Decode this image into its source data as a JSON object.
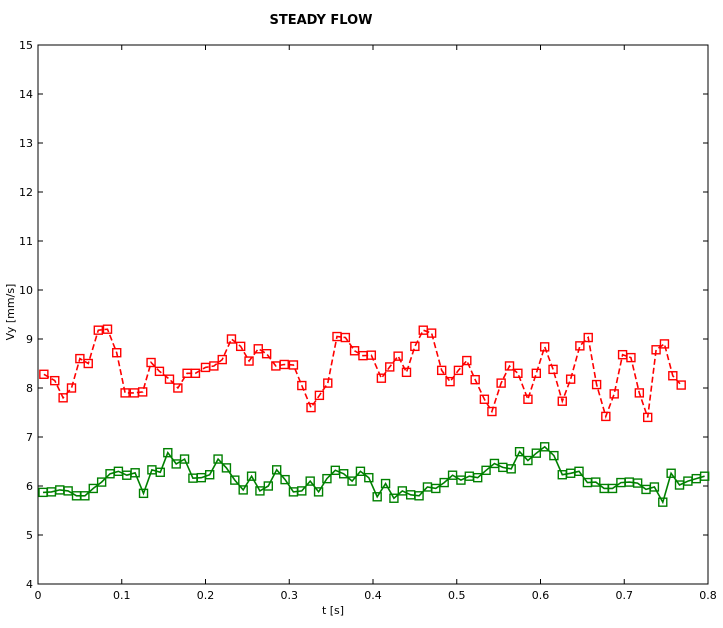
{
  "chart_data": {
    "type": "line",
    "title": "STEADY FLOW",
    "xlabel": "t [s]",
    "ylabel": "Vy [mm/s]",
    "xlim": [
      0,
      0.8
    ],
    "ylim": [
      4,
      15
    ],
    "xticks": [
      "0",
      "0.1",
      "0.2",
      "0.3",
      "0.4",
      "0.5",
      "0.6",
      "0.7",
      "0.8"
    ],
    "yticks": [
      "4",
      "5",
      "6",
      "7",
      "8",
      "9",
      "10",
      "11",
      "12",
      "13",
      "14",
      "15"
    ],
    "grid": false,
    "series": [
      {
        "color": "#ff0000",
        "line_style": "dashed",
        "marker": "square",
        "points": [
          [
            0.007,
            8.28
          ],
          [
            0.02,
            8.15
          ],
          [
            0.03,
            7.8
          ],
          [
            0.04,
            8.0
          ],
          [
            0.05,
            8.6
          ],
          [
            0.06,
            8.5
          ],
          [
            0.072,
            9.18
          ],
          [
            0.083,
            9.2
          ],
          [
            0.094,
            8.72
          ],
          [
            0.104,
            7.9
          ],
          [
            0.115,
            7.9
          ],
          [
            0.125,
            7.92
          ],
          [
            0.135,
            8.52
          ],
          [
            0.145,
            8.34
          ],
          [
            0.157,
            8.18
          ],
          [
            0.167,
            8.0
          ],
          [
            0.178,
            8.3
          ],
          [
            0.188,
            8.3
          ],
          [
            0.2,
            8.42
          ],
          [
            0.21,
            8.45
          ],
          [
            0.22,
            8.58
          ],
          [
            0.231,
            9.0
          ],
          [
            0.242,
            8.85
          ],
          [
            0.252,
            8.55
          ],
          [
            0.263,
            8.8
          ],
          [
            0.273,
            8.7
          ],
          [
            0.284,
            8.45
          ],
          [
            0.294,
            8.48
          ],
          [
            0.305,
            8.47
          ],
          [
            0.315,
            8.05
          ],
          [
            0.326,
            7.6
          ],
          [
            0.336,
            7.85
          ],
          [
            0.346,
            8.1
          ],
          [
            0.357,
            9.05
          ],
          [
            0.367,
            9.03
          ],
          [
            0.378,
            8.76
          ],
          [
            0.388,
            8.66
          ],
          [
            0.398,
            8.67
          ],
          [
            0.41,
            8.2
          ],
          [
            0.42,
            8.43
          ],
          [
            0.43,
            8.65
          ],
          [
            0.44,
            8.32
          ],
          [
            0.45,
            8.85
          ],
          [
            0.46,
            9.18
          ],
          [
            0.47,
            9.12
          ],
          [
            0.482,
            8.36
          ],
          [
            0.492,
            8.13
          ],
          [
            0.502,
            8.36
          ],
          [
            0.512,
            8.56
          ],
          [
            0.522,
            8.17
          ],
          [
            0.533,
            7.77
          ],
          [
            0.542,
            7.52
          ],
          [
            0.553,
            8.1
          ],
          [
            0.563,
            8.45
          ],
          [
            0.573,
            8.3
          ],
          [
            0.585,
            7.77
          ],
          [
            0.595,
            8.3
          ],
          [
            0.605,
            8.84
          ],
          [
            0.615,
            8.38
          ],
          [
            0.626,
            7.73
          ],
          [
            0.636,
            8.18
          ],
          [
            0.647,
            8.86
          ],
          [
            0.657,
            9.03
          ],
          [
            0.667,
            8.07
          ],
          [
            0.678,
            7.42
          ],
          [
            0.688,
            7.88
          ],
          [
            0.698,
            8.68
          ],
          [
            0.708,
            8.62
          ],
          [
            0.718,
            7.9
          ],
          [
            0.728,
            7.4
          ],
          [
            0.738,
            8.78
          ],
          [
            0.748,
            8.9
          ],
          [
            0.758,
            8.25
          ],
          [
            0.768,
            8.06
          ]
        ]
      },
      {
        "color": "#008000",
        "line_style": "solid",
        "marker": "square",
        "points": [
          [
            0.006,
            5.87
          ],
          [
            0.016,
            5.88
          ],
          [
            0.026,
            5.92
          ],
          [
            0.036,
            5.9
          ],
          [
            0.046,
            5.8
          ],
          [
            0.056,
            5.8
          ],
          [
            0.066,
            5.95
          ],
          [
            0.076,
            6.08
          ],
          [
            0.086,
            6.25
          ],
          [
            0.096,
            6.3
          ],
          [
            0.106,
            6.22
          ],
          [
            0.116,
            6.27
          ],
          [
            0.126,
            5.85
          ],
          [
            0.136,
            6.33
          ],
          [
            0.146,
            6.28
          ],
          [
            0.155,
            6.68
          ],
          [
            0.165,
            6.45
          ],
          [
            0.175,
            6.55
          ],
          [
            0.185,
            6.16
          ],
          [
            0.195,
            6.17
          ],
          [
            0.205,
            6.23
          ],
          [
            0.215,
            6.55
          ],
          [
            0.225,
            6.37
          ],
          [
            0.235,
            6.12
          ],
          [
            0.245,
            5.92
          ],
          [
            0.255,
            6.2
          ],
          [
            0.265,
            5.9
          ],
          [
            0.275,
            6.0
          ],
          [
            0.285,
            6.33
          ],
          [
            0.295,
            6.13
          ],
          [
            0.305,
            5.88
          ],
          [
            0.315,
            5.9
          ],
          [
            0.325,
            6.1
          ],
          [
            0.335,
            5.88
          ],
          [
            0.345,
            6.15
          ],
          [
            0.355,
            6.32
          ],
          [
            0.365,
            6.25
          ],
          [
            0.375,
            6.1
          ],
          [
            0.385,
            6.3
          ],
          [
            0.395,
            6.17
          ],
          [
            0.405,
            5.78
          ],
          [
            0.415,
            6.05
          ],
          [
            0.425,
            5.75
          ],
          [
            0.435,
            5.9
          ],
          [
            0.445,
            5.82
          ],
          [
            0.455,
            5.8
          ],
          [
            0.465,
            5.98
          ],
          [
            0.475,
            5.95
          ],
          [
            0.485,
            6.07
          ],
          [
            0.495,
            6.22
          ],
          [
            0.505,
            6.12
          ],
          [
            0.515,
            6.2
          ],
          [
            0.525,
            6.17
          ],
          [
            0.535,
            6.32
          ],
          [
            0.545,
            6.46
          ],
          [
            0.555,
            6.38
          ],
          [
            0.565,
            6.35
          ],
          [
            0.575,
            6.7
          ],
          [
            0.585,
            6.52
          ],
          [
            0.595,
            6.67
          ],
          [
            0.605,
            6.8
          ],
          [
            0.616,
            6.62
          ],
          [
            0.626,
            6.23
          ],
          [
            0.636,
            6.26
          ],
          [
            0.646,
            6.3
          ],
          [
            0.656,
            6.07
          ],
          [
            0.666,
            6.08
          ],
          [
            0.676,
            5.95
          ],
          [
            0.686,
            5.95
          ],
          [
            0.696,
            6.07
          ],
          [
            0.706,
            6.08
          ],
          [
            0.716,
            6.06
          ],
          [
            0.726,
            5.93
          ],
          [
            0.736,
            5.98
          ],
          [
            0.746,
            5.67
          ],
          [
            0.756,
            6.26
          ],
          [
            0.766,
            6.02
          ],
          [
            0.776,
            6.1
          ],
          [
            0.786,
            6.15
          ],
          [
            0.796,
            6.2
          ]
        ]
      }
    ]
  }
}
